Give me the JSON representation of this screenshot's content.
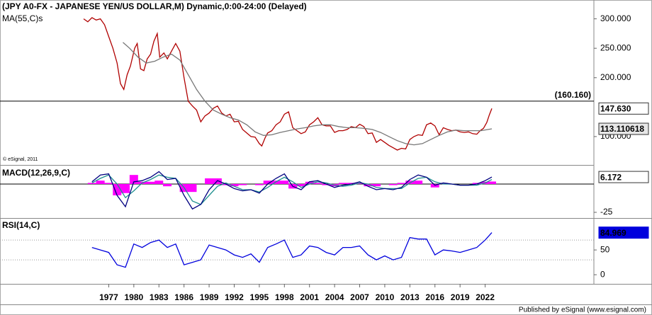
{
  "chart_data": [
    {
      "type": "line",
      "title": "(JPY A0-FX - JAPANESE YEN/US DOLLAR,M) Dynamic,0:00-24:00 (Delayed)",
      "annotation": "© eSignal, 2011",
      "xlim": [
        1964,
        2035
      ],
      "ylim": [
        53,
        332
      ],
      "yticks": [
        {
          "value": 300,
          "label": "300.000"
        },
        {
          "value": 250,
          "label": "250.000"
        },
        {
          "value": 200,
          "label": "200.000"
        },
        {
          "value": 100,
          "label": "100.000"
        }
      ],
      "reference_line": {
        "value": 160.16,
        "label": "(160.160)"
      },
      "x": [
        1974.0,
        1974.5,
        1975.0,
        1975.5,
        1976.0,
        1976.5,
        1977.0,
        1977.5,
        1978.0,
        1978.4,
        1978.8,
        1979.2,
        1979.6,
        1980.1,
        1980.4,
        1980.8,
        1981.2,
        1981.6,
        1982.0,
        1982.4,
        1982.8,
        1983.1,
        1983.6,
        1984.0,
        1984.5,
        1985.0,
        1985.5,
        1986.0,
        1986.5,
        1987.0,
        1987.5,
        1988.0,
        1988.5,
        1989.0,
        1989.5,
        1990.0,
        1990.5,
        1991.0,
        1991.5,
        1992.0,
        1992.5,
        1993.0,
        1993.5,
        1994.0,
        1994.5,
        1995.0,
        1995.3,
        1995.7,
        1996.0,
        1996.5,
        1997.0,
        1997.5,
        1998.0,
        1998.5,
        1999.0,
        1999.5,
        2000.0,
        2000.5,
        2001.0,
        2001.5,
        2002.0,
        2002.5,
        2003.0,
        2003.5,
        2004.0,
        2004.5,
        2005.0,
        2005.5,
        2006.0,
        2006.5,
        2007.0,
        2007.5,
        2008.0,
        2008.5,
        2009.0,
        2009.5,
        2010.0,
        2010.5,
        2011.0,
        2011.5,
        2012.0,
        2012.5,
        2013.0,
        2013.5,
        2014.0,
        2014.5,
        2015.0,
        2015.5,
        2016.0,
        2016.5,
        2017.0,
        2017.5,
        2018.0,
        2018.5,
        2019.0,
        2019.5,
        2020.0,
        2020.5,
        2021.0,
        2021.4,
        2021.8,
        2022.2,
        2022.5,
        2022.8
      ],
      "series": [
        {
          "color": "#b00000",
          "last_label": "147.630",
          "values": [
            300,
            295,
            302,
            298,
            300,
            290,
            270,
            250,
            225,
            190,
            180,
            205,
            220,
            250,
            258,
            215,
            212,
            232,
            240,
            262,
            275,
            235,
            242,
            232,
            245,
            258,
            245,
            200,
            160,
            152,
            145,
            125,
            135,
            140,
            148,
            152,
            140,
            135,
            138,
            125,
            126,
            112,
            106,
            100,
            99,
            88,
            84,
            98,
            106,
            110,
            120,
            125,
            138,
            142,
            115,
            110,
            105,
            108,
            120,
            125,
            132,
            120,
            118,
            118,
            107,
            110,
            110,
            112,
            117,
            115,
            121,
            117,
            105,
            106,
            90,
            95,
            90,
            85,
            81,
            77,
            80,
            79,
            95,
            100,
            103,
            102,
            120,
            123,
            118,
            103,
            115,
            112,
            110,
            111,
            108,
            107,
            108,
            105,
            104,
            110,
            114,
            124,
            137,
            147.63
          ]
        },
        {
          "name": "MA(55,C)s",
          "color": "#777777",
          "last_label": "113.110618",
          "x": [
            1978.7,
            1979.5,
            1980.5,
            1981.5,
            1982.5,
            1983.5,
            1984.5,
            1985.5,
            1986.5,
            1987.5,
            1988.5,
            1989.5,
            1990.5,
            1991.5,
            1992.5,
            1993.5,
            1994.5,
            1995.5,
            1996.5,
            1997.5,
            1998.5,
            1999.5,
            2000.5,
            2001.5,
            2002.5,
            2003.5,
            2004.5,
            2005.5,
            2006.5,
            2007.5,
            2008.5,
            2009.5,
            2010.5,
            2011.5,
            2012.5,
            2013.5,
            2014.5,
            2015.5,
            2016.5,
            2017.5,
            2018.5,
            2019.5,
            2020.5,
            2021.5,
            2022.8
          ],
          "values": [
            260,
            250,
            235,
            225,
            228,
            235,
            240,
            230,
            205,
            180,
            160,
            145,
            138,
            132,
            128,
            120,
            108,
            102,
            103,
            107,
            110,
            113,
            115,
            118,
            120,
            120,
            117,
            115,
            115,
            114,
            112,
            107,
            100,
            93,
            88,
            86,
            88,
            95,
            102,
            108,
            111,
            110,
            110,
            110,
            113.110618
          ]
        }
      ]
    },
    {
      "type": "macd",
      "title": "MACD(12,26,9,C)",
      "xlim": [
        1964,
        2035
      ],
      "ylim": [
        -29.4,
        15.6
      ],
      "yticks": [
        -25
      ],
      "zero_line": 0,
      "x": [
        1975,
        1976,
        1977,
        1978,
        1979,
        1980,
        1981,
        1982,
        1983,
        1984,
        1985,
        1986,
        1987,
        1988,
        1989,
        1990,
        1991,
        1992,
        1993,
        1994,
        1995,
        1996,
        1997,
        1998,
        1999,
        2000,
        2001,
        2002,
        2003,
        2004,
        2005,
        2006,
        2007,
        2008,
        2009,
        2010,
        2011,
        2012,
        2013,
        2014,
        2015,
        2016,
        2017,
        2018,
        2019,
        2020,
        2021,
        2022,
        2022.8
      ],
      "series": [
        {
          "kind": "bar",
          "color": "#ff00ff",
          "values": [
            1,
            3,
            1,
            -10,
            -8,
            8,
            2,
            2,
            3,
            -2,
            0,
            -7,
            -7,
            0,
            5,
            5,
            -1,
            -2,
            -1,
            0,
            -1,
            3,
            3,
            3,
            -4,
            -2,
            2,
            1,
            -1,
            -2,
            1,
            1,
            1,
            -2,
            -2,
            0,
            -1,
            1,
            3,
            3,
            0,
            -3,
            1,
            0,
            0,
            0,
            1,
            2,
            2.2
          ]
        },
        {
          "kind": "line",
          "color": "#1f8f8f",
          "values": [
            1,
            5,
            8,
            0,
            -12,
            -6,
            1,
            4,
            8,
            6,
            5,
            -3,
            -15,
            -18,
            -10,
            -2,
            1,
            -2,
            -5,
            -5,
            -7,
            -3,
            2,
            6,
            2,
            -3,
            0,
            2,
            1,
            -1,
            -2,
            -1,
            1,
            0,
            -3,
            -4,
            -4,
            -4,
            1,
            5,
            6,
            2,
            0,
            0,
            -1,
            -1,
            -1,
            1,
            4
          ]
        },
        {
          "kind": "line",
          "color": "#000080",
          "last_label": "6.172",
          "values": [
            2,
            8,
            9,
            -10,
            -20,
            2,
            3,
            6,
            11,
            4,
            5,
            -10,
            -22,
            -18,
            -5,
            3,
            0,
            -4,
            -6,
            -5,
            -8,
            0,
            5,
            9,
            -2,
            -5,
            2,
            3,
            0,
            -3,
            -1,
            0,
            2,
            -2,
            -5,
            -4,
            -5,
            -3,
            4,
            8,
            6,
            -1,
            1,
            0,
            -1,
            -1,
            0,
            3,
            6.172
          ]
        }
      ]
    },
    {
      "type": "rsi",
      "title": "RSI(14,C)",
      "xlim": [
        1964,
        2035
      ],
      "ylim": [
        -17,
        113
      ],
      "yticks": [
        0,
        50
      ],
      "levels": [
        30,
        70
      ],
      "xticks": [
        1977,
        1980,
        1983,
        1986,
        1989,
        1992,
        1995,
        1998,
        2001,
        2004,
        2007,
        2010,
        2013,
        2016,
        2019,
        2022
      ],
      "x": [
        1975,
        1976,
        1977,
        1978,
        1979,
        1980,
        1981,
        1982,
        1983,
        1984,
        1985,
        1986,
        1987,
        1988,
        1989,
        1990,
        1991,
        1992,
        1993,
        1994,
        1995,
        1996,
        1997,
        1998,
        1999,
        2000,
        2001,
        2002,
        2003,
        2004,
        2005,
        2006,
        2007,
        2008,
        2009,
        2010,
        2011,
        2012,
        2013,
        2014,
        2015,
        2016,
        2017,
        2018,
        2019,
        2020,
        2021,
        2022,
        2022.8
      ],
      "series": [
        {
          "color": "#0000dd",
          "last_label": "84.969",
          "values": [
            55,
            50,
            45,
            20,
            15,
            62,
            55,
            65,
            70,
            55,
            62,
            20,
            25,
            30,
            60,
            55,
            50,
            40,
            35,
            42,
            25,
            55,
            62,
            70,
            35,
            40,
            58,
            55,
            45,
            40,
            55,
            55,
            58,
            40,
            30,
            38,
            30,
            35,
            75,
            72,
            72,
            40,
            50,
            48,
            45,
            50,
            55,
            70,
            84.969
          ]
        }
      ]
    }
  ],
  "footer": "Published by eSignal (www.esignal.com)"
}
